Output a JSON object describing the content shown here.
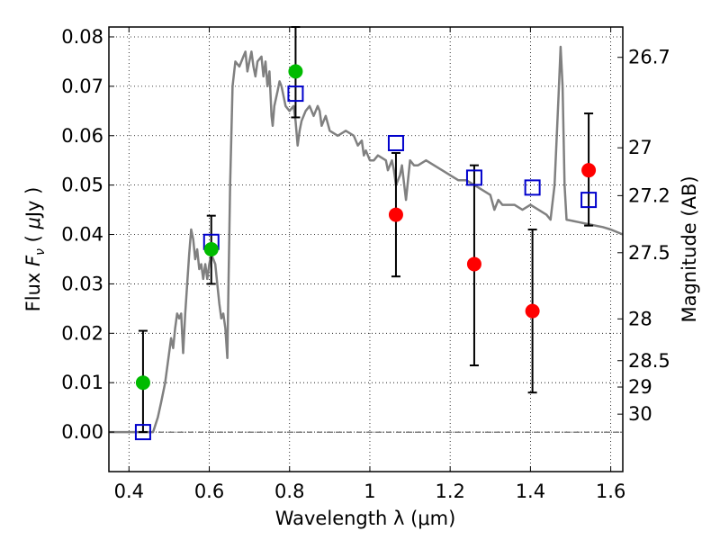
{
  "chart_data": {
    "type": "scatter",
    "xlabel": "Wavelength  λ (μm)",
    "ylabel_parts": [
      "Flux ",
      "F",
      "ν",
      "  ( ",
      "μ",
      "Jy )"
    ],
    "y2label": "Magnitude (AB)",
    "xlim": [
      0.35,
      1.63
    ],
    "ylim": [
      -0.008,
      0.082
    ],
    "grid": true,
    "x_ticks": [
      0.4,
      0.6,
      0.8,
      1.0,
      1.2,
      1.4,
      1.6
    ],
    "x_tick_labels": [
      "0.4",
      "0.6",
      "0.8",
      "1",
      "1.2",
      "1.4",
      "1.6"
    ],
    "y_ticks": [
      0.0,
      0.01,
      0.02,
      0.03,
      0.04,
      0.05,
      0.06,
      0.07,
      0.08
    ],
    "y_tick_labels": [
      "0.00",
      "0.01",
      "0.02",
      "0.03",
      "0.04",
      "0.05",
      "0.06",
      "0.07",
      "0.08"
    ],
    "y2_ticks": [
      26.7,
      27.0,
      27.2,
      27.5,
      28.0,
      28.5,
      29.0,
      30.0
    ],
    "y2_tick_labels": [
      "26.7",
      "27",
      "27.2",
      "27.5",
      "28",
      "28.5",
      "29",
      "30"
    ],
    "series": [
      {
        "kind": "line",
        "color": "#808080",
        "points": [
          [
            0.35,
            0.0
          ],
          [
            0.46,
            0.0
          ],
          [
            0.472,
            0.003
          ],
          [
            0.48,
            0.006
          ],
          [
            0.49,
            0.01
          ],
          [
            0.5,
            0.016
          ],
          [
            0.505,
            0.019
          ],
          [
            0.51,
            0.017
          ],
          [
            0.515,
            0.021
          ],
          [
            0.52,
            0.024
          ],
          [
            0.525,
            0.023
          ],
          [
            0.53,
            0.024
          ],
          [
            0.535,
            0.016
          ],
          [
            0.54,
            0.024
          ],
          [
            0.545,
            0.03
          ],
          [
            0.55,
            0.036
          ],
          [
            0.555,
            0.041
          ],
          [
            0.56,
            0.039
          ],
          [
            0.565,
            0.035
          ],
          [
            0.57,
            0.037
          ],
          [
            0.575,
            0.033
          ],
          [
            0.58,
            0.034
          ],
          [
            0.585,
            0.031
          ],
          [
            0.59,
            0.034
          ],
          [
            0.595,
            0.031
          ],
          [
            0.6,
            0.034
          ],
          [
            0.605,
            0.036
          ],
          [
            0.61,
            0.035
          ],
          [
            0.615,
            0.034
          ],
          [
            0.62,
            0.03
          ],
          [
            0.625,
            0.026
          ],
          [
            0.63,
            0.023
          ],
          [
            0.635,
            0.024
          ],
          [
            0.64,
            0.021
          ],
          [
            0.645,
            0.015
          ],
          [
            0.648,
            0.03
          ],
          [
            0.652,
            0.05
          ],
          [
            0.658,
            0.07
          ],
          [
            0.665,
            0.075
          ],
          [
            0.675,
            0.074
          ],
          [
            0.685,
            0.076
          ],
          [
            0.69,
            0.077
          ],
          [
            0.695,
            0.073
          ],
          [
            0.7,
            0.075
          ],
          [
            0.705,
            0.077
          ],
          [
            0.71,
            0.074
          ],
          [
            0.715,
            0.072
          ],
          [
            0.72,
            0.075
          ],
          [
            0.73,
            0.076
          ],
          [
            0.735,
            0.072
          ],
          [
            0.74,
            0.075
          ],
          [
            0.745,
            0.07
          ],
          [
            0.75,
            0.073
          ],
          [
            0.755,
            0.064
          ],
          [
            0.758,
            0.062
          ],
          [
            0.762,
            0.066
          ],
          [
            0.77,
            0.069
          ],
          [
            0.775,
            0.071
          ],
          [
            0.78,
            0.07
          ],
          [
            0.79,
            0.066
          ],
          [
            0.8,
            0.065
          ],
          [
            0.81,
            0.066
          ],
          [
            0.815,
            0.063
          ],
          [
            0.82,
            0.058
          ],
          [
            0.825,
            0.061
          ],
          [
            0.83,
            0.063
          ],
          [
            0.84,
            0.065
          ],
          [
            0.85,
            0.066
          ],
          [
            0.86,
            0.064
          ],
          [
            0.87,
            0.066
          ],
          [
            0.875,
            0.065
          ],
          [
            0.88,
            0.062
          ],
          [
            0.89,
            0.064
          ],
          [
            0.9,
            0.061
          ],
          [
            0.92,
            0.06
          ],
          [
            0.94,
            0.061
          ],
          [
            0.96,
            0.06
          ],
          [
            0.97,
            0.058
          ],
          [
            0.98,
            0.059
          ],
          [
            0.985,
            0.056
          ],
          [
            0.99,
            0.057
          ],
          [
            1.0,
            0.055
          ],
          [
            1.01,
            0.055
          ],
          [
            1.02,
            0.056
          ],
          [
            1.04,
            0.055
          ],
          [
            1.045,
            0.053
          ],
          [
            1.055,
            0.055
          ],
          [
            1.06,
            0.053
          ],
          [
            1.065,
            0.05
          ],
          [
            1.075,
            0.052
          ],
          [
            1.08,
            0.054
          ],
          [
            1.09,
            0.047
          ],
          [
            1.1,
            0.055
          ],
          [
            1.11,
            0.054
          ],
          [
            1.12,
            0.054
          ],
          [
            1.14,
            0.055
          ],
          [
            1.16,
            0.054
          ],
          [
            1.18,
            0.053
          ],
          [
            1.2,
            0.052
          ],
          [
            1.22,
            0.051
          ],
          [
            1.24,
            0.051
          ],
          [
            1.26,
            0.05
          ],
          [
            1.28,
            0.049
          ],
          [
            1.3,
            0.048
          ],
          [
            1.31,
            0.045
          ],
          [
            1.32,
            0.047
          ],
          [
            1.33,
            0.046
          ],
          [
            1.36,
            0.046
          ],
          [
            1.38,
            0.045
          ],
          [
            1.4,
            0.046
          ],
          [
            1.42,
            0.045
          ],
          [
            1.44,
            0.044
          ],
          [
            1.45,
            0.043
          ],
          [
            1.46,
            0.05
          ],
          [
            1.47,
            0.068
          ],
          [
            1.475,
            0.078
          ],
          [
            1.48,
            0.07
          ],
          [
            1.485,
            0.05
          ],
          [
            1.49,
            0.043
          ],
          [
            1.52,
            0.0425
          ],
          [
            1.55,
            0.042
          ],
          [
            1.58,
            0.0415
          ],
          [
            1.6,
            0.041
          ],
          [
            1.63,
            0.04
          ]
        ]
      },
      {
        "kind": "open-square",
        "color": "#0000cc",
        "x": [
          0.435,
          0.605,
          0.815,
          1.065,
          1.26,
          1.405,
          1.545
        ],
        "y": [
          0.0,
          0.0385,
          0.0685,
          0.0585,
          0.0515,
          0.0495,
          0.047
        ]
      },
      {
        "kind": "circle",
        "color": "#00bb00",
        "x": [
          0.435,
          0.605,
          0.815
        ],
        "y": [
          0.01,
          0.037,
          0.073
        ]
      },
      {
        "kind": "circle",
        "color": "#ff0000",
        "x": [
          1.065,
          1.26,
          1.405,
          1.545
        ],
        "y": [
          0.044,
          0.034,
          0.0245,
          0.053
        ]
      }
    ],
    "errorbars": [
      {
        "x": 0.435,
        "low": 0.0,
        "high": 0.0205
      },
      {
        "x": 0.605,
        "low": 0.03,
        "high": 0.0438
      },
      {
        "x": 0.815,
        "low": 0.0637,
        "high": 0.082
      },
      {
        "x": 1.065,
        "low": 0.0315,
        "high": 0.0565
      },
      {
        "x": 1.26,
        "low": 0.0135,
        "high": 0.054
      },
      {
        "x": 1.405,
        "low": 0.008,
        "high": 0.041
      },
      {
        "x": 1.545,
        "low": 0.0418,
        "high": 0.0645
      }
    ],
    "baseline": {
      "y": 0.0,
      "style": "dash-dot"
    }
  }
}
